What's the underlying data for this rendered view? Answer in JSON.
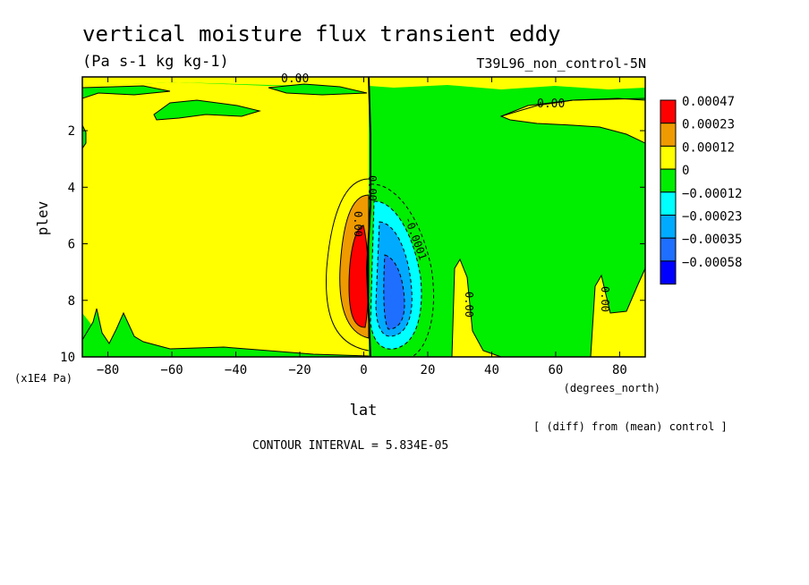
{
  "chart_data": {
    "type": "heatmap",
    "title": "vertical moisture flux transient eddy",
    "subtitle": "(Pa s-1 kg kg-1)",
    "run_label": "T39L96_non_control-5N",
    "xlabel": "lat",
    "x_units": "(degrees_north)",
    "ylabel": "plev",
    "y_units": "(x1E4 Pa)",
    "xlim": [
      -88,
      88
    ],
    "ylim": [
      10,
      0.1
    ],
    "x_ticks": [
      -80,
      -60,
      -40,
      -20,
      0,
      20,
      40,
      60,
      80
    ],
    "y_ticks": [
      2,
      4,
      6,
      8,
      10
    ],
    "legend": {
      "placement": "right",
      "levels": [
        "0.00047",
        "0.00023",
        "0.00012",
        "0",
        "-0.00012",
        "-0.00023",
        "-0.00035",
        "-0.00058"
      ],
      "colors": [
        "#ff0000",
        "#ee9a00",
        "#ffff00",
        "#00ee00",
        "#00ffff",
        "#00aaff",
        "#1e6fff",
        "#0000ff"
      ]
    },
    "contour_labels": [
      "0.00",
      "0.00",
      "0.00",
      "0.00",
      "0.00",
      "0.00"
    ],
    "neg_contour_label": "-0.0001",
    "features": [
      {
        "name": "positive core",
        "lat": -3,
        "plev": 7.2,
        "approx_max": 0.00047
      },
      {
        "name": "negative core",
        "lat": 9,
        "plev": 7.6,
        "approx_min": -0.00058
      }
    ],
    "grid": false,
    "note": "[ (diff) from (mean) control ]",
    "contour_interval": "CONTOUR INTERVAL = 5.834E-05"
  }
}
